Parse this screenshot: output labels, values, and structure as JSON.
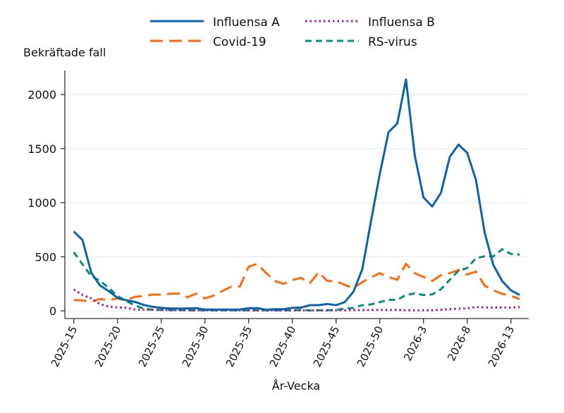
{
  "chart_data": {
    "type": "line",
    "xlabel": "År-Vecka",
    "ylabel": "Bekräftade fall",
    "ylim": [
      0,
      2150
    ],
    "yticks": [
      0,
      500,
      1000,
      1500,
      2000
    ],
    "grid": true,
    "legend_position": "top",
    "x": [
      "2025-15",
      "2025-16",
      "2025-17",
      "2025-18",
      "2025-19",
      "2025-20",
      "2025-21",
      "2025-22",
      "2025-23",
      "2025-24",
      "2025-25",
      "2025-26",
      "2025-27",
      "2025-28",
      "2025-29",
      "2025-30",
      "2025-31",
      "2025-32",
      "2025-33",
      "2025-34",
      "2025-35",
      "2025-36",
      "2025-37",
      "2025-38",
      "2025-39",
      "2025-40",
      "2025-41",
      "2025-42",
      "2025-43",
      "2025-44",
      "2025-45",
      "2025-46",
      "2025-47",
      "2025-48",
      "2025-49",
      "2025-50",
      "2025-51",
      "2025-52",
      "2026-1",
      "2026-2",
      "2026-3",
      "2026-4",
      "2026-5",
      "2026-6",
      "2026-7",
      "2026-8",
      "2026-9",
      "2026-10",
      "2026-11",
      "2026-12",
      "2026-13",
      "2026-14"
    ],
    "xticks": [
      "2025-15",
      "2025-20",
      "2025-25",
      "2025-30",
      "2025-35",
      "2025-40",
      "2025-45",
      "2025-50",
      "2026-3",
      "2026-8",
      "2026-13"
    ],
    "series": [
      {
        "name": "Influensa A",
        "color": "#0b62ad",
        "dash": "solid",
        "values": [
          735,
          654,
          352,
          235,
          182,
          120,
          98,
          83,
          54,
          37,
          28,
          22,
          20,
          22,
          25,
          12,
          12,
          12,
          12,
          12,
          25,
          25,
          10,
          15,
          15,
          28,
          30,
          52,
          52,
          63,
          52,
          80,
          178,
          385,
          830,
          1265,
          1652,
          1733,
          2139,
          1439,
          1048,
          965,
          1091,
          1422,
          1537,
          1461,
          1211,
          722,
          422,
          276,
          189,
          146
        ]
      },
      {
        "name": "Influensa B",
        "color": "#9a1e8d",
        "dash": "dot",
        "values": [
          197,
          147,
          115,
          61,
          39,
          32,
          28,
          12,
          12,
          10,
          8,
          6,
          6,
          5,
          5,
          4,
          4,
          4,
          4,
          4,
          4,
          4,
          4,
          4,
          4,
          4,
          4,
          4,
          4,
          4,
          5,
          5,
          5,
          6,
          8,
          8,
          8,
          8,
          5,
          5,
          5,
          5,
          10,
          15,
          20,
          22,
          35,
          30,
          30,
          30,
          30,
          35
        ]
      },
      {
        "name": "Covid-19",
        "color": "#ff6a0e",
        "dash": "longdash",
        "values": [
          100,
          95,
          85,
          108,
          100,
          115,
          95,
          130,
          137,
          150,
          150,
          157,
          160,
          126,
          160,
          115,
          141,
          184,
          223,
          225,
          407,
          435,
          349,
          277,
          249,
          284,
          305,
          254,
          357,
          276,
          276,
          239,
          211,
          265,
          309,
          348,
          313,
          287,
          435,
          348,
          313,
          276,
          330,
          348,
          378,
          335,
          363,
          233,
          189,
          157,
          139,
          109
        ]
      },
      {
        "name": "RS-virus",
        "color": "#0a8d7d",
        "dash": "dash",
        "values": [
          543,
          429,
          320,
          277,
          212,
          136,
          90,
          50,
          20,
          10,
          8,
          6,
          6,
          5,
          5,
          5,
          5,
          5,
          5,
          5,
          5,
          5,
          5,
          5,
          5,
          5,
          8,
          4,
          5,
          5,
          9,
          20,
          26,
          52,
          59,
          80,
          102,
          102,
          146,
          161,
          146,
          152,
          200,
          287,
          370,
          396,
          487,
          504,
          504,
          570,
          526,
          520
        ]
      }
    ]
  }
}
